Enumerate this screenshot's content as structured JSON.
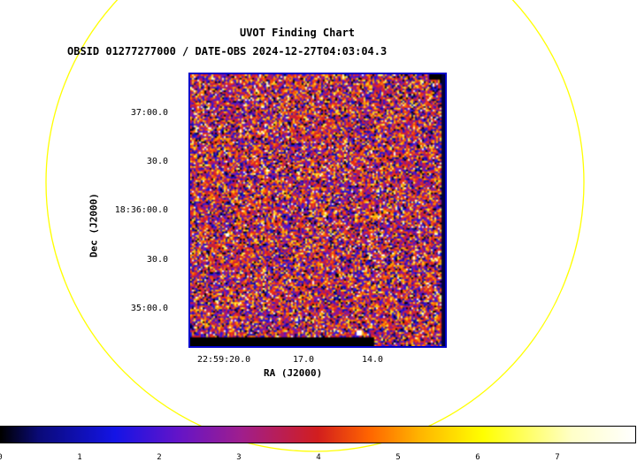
{
  "header": {
    "title": "UVOT Finding Chart",
    "subtitle": "OBSID 01277277000 / DATE-OBS 2024-12-27T04:03:04.3"
  },
  "axes": {
    "xlabel": "RA (J2000)",
    "ylabel": "Dec (J2000)",
    "xticks": [
      "22:59:20.0",
      "17.0",
      "14.0"
    ],
    "yticks": [
      "37:00.0",
      "30.0",
      "18:36:00.0",
      "30.0",
      "35:00.0"
    ]
  },
  "colorbar": {
    "ticks": [
      "0",
      "1",
      "2",
      "3",
      "4",
      "5",
      "6",
      "7"
    ]
  },
  "colors": {
    "circle": "#ffff00",
    "frame": "#0000c8"
  }
}
